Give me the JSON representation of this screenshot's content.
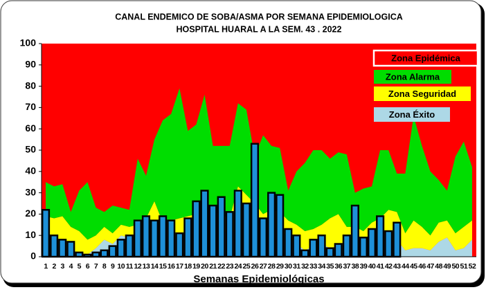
{
  "chart_data": {
    "type": "endemic-channel",
    "title": [
      "CANAL ENDEMICO DE SOBA/ASMA POR SEMANA EPIDEMIOLOGICA",
      "HOSPITAL HUARAL A LA SEM. 43 . 2022"
    ],
    "x_label": "Semanas Epidemiológicas",
    "categories": [
      "1",
      "2",
      "3",
      "4",
      "5",
      "6",
      "7",
      "8",
      "9",
      "10",
      "11",
      "12",
      "13",
      "14",
      "15",
      "16",
      "17",
      "18",
      "19",
      "20",
      "21",
      "22",
      "23",
      "24",
      "25",
      "26",
      "27",
      "28",
      "29",
      "30",
      "31",
      "32",
      "33",
      "34",
      "35",
      "36",
      "37",
      "38",
      "39",
      "40",
      "41",
      "42",
      "43",
      "44",
      "45",
      "46",
      "47",
      "48",
      "49",
      "50",
      "51",
      "52"
    ],
    "ylim": [
      0,
      100
    ],
    "yticks": [
      0,
      10,
      20,
      30,
      40,
      50,
      60,
      70,
      80,
      90,
      100
    ],
    "zones": [
      {
        "name": "Zona Éxito",
        "color": "#add8e6",
        "values": [
          8,
          5,
          4,
          3,
          2,
          1,
          4,
          8,
          6,
          10,
          9,
          10,
          9,
          12,
          9,
          10,
          8,
          9,
          12,
          14,
          12,
          13,
          10,
          14,
          12,
          16,
          10,
          14,
          13,
          8,
          6,
          3,
          5,
          6,
          4,
          5,
          7,
          10,
          6,
          7,
          9,
          6,
          8,
          3,
          4,
          4,
          3,
          7,
          9,
          3,
          4,
          8
        ]
      },
      {
        "name": "Zona Seguridad",
        "color": "#ffff00",
        "values": [
          11,
          13,
          15,
          11,
          10,
          7,
          6,
          6,
          5,
          5,
          5,
          5,
          9,
          14,
          7,
          7,
          10,
          10,
          8,
          6,
          9,
          7,
          8,
          19,
          17,
          9,
          10,
          8,
          8,
          9,
          9,
          9,
          8,
          9,
          14,
          15,
          7,
          4,
          6,
          9,
          9,
          16,
          13,
          8,
          13,
          10,
          7,
          9,
          8,
          8,
          10,
          9
        ]
      },
      {
        "name": "Zona Alarma",
        "color": "#00dd00",
        "values": [
          16,
          15,
          15,
          7,
          19,
          27,
          13,
          7,
          13,
          8,
          8,
          31,
          20,
          29,
          48,
          50,
          61,
          40,
          42,
          56,
          31,
          32,
          34,
          39,
          40,
          22,
          37,
          30,
          30,
          14,
          25,
          32,
          37,
          35,
          28,
          29,
          34,
          16,
          20,
          17,
          32,
          28,
          18,
          28,
          49,
          38,
          30,
          20,
          14,
          36,
          40,
          25
        ]
      },
      {
        "name": "Zona Epidémica",
        "color": "#ff0000"
      }
    ],
    "bars": {
      "color": "#1e90d8",
      "values": [
        22,
        10,
        8,
        7,
        2,
        1,
        2,
        3,
        5,
        8,
        10,
        17,
        19,
        17,
        19,
        17,
        11,
        18,
        26,
        31,
        24,
        28,
        21,
        31,
        25,
        53,
        18,
        30,
        29,
        13,
        10,
        3,
        8,
        10,
        4,
        6,
        10,
        24,
        9,
        13,
        19,
        12,
        16
      ]
    }
  }
}
